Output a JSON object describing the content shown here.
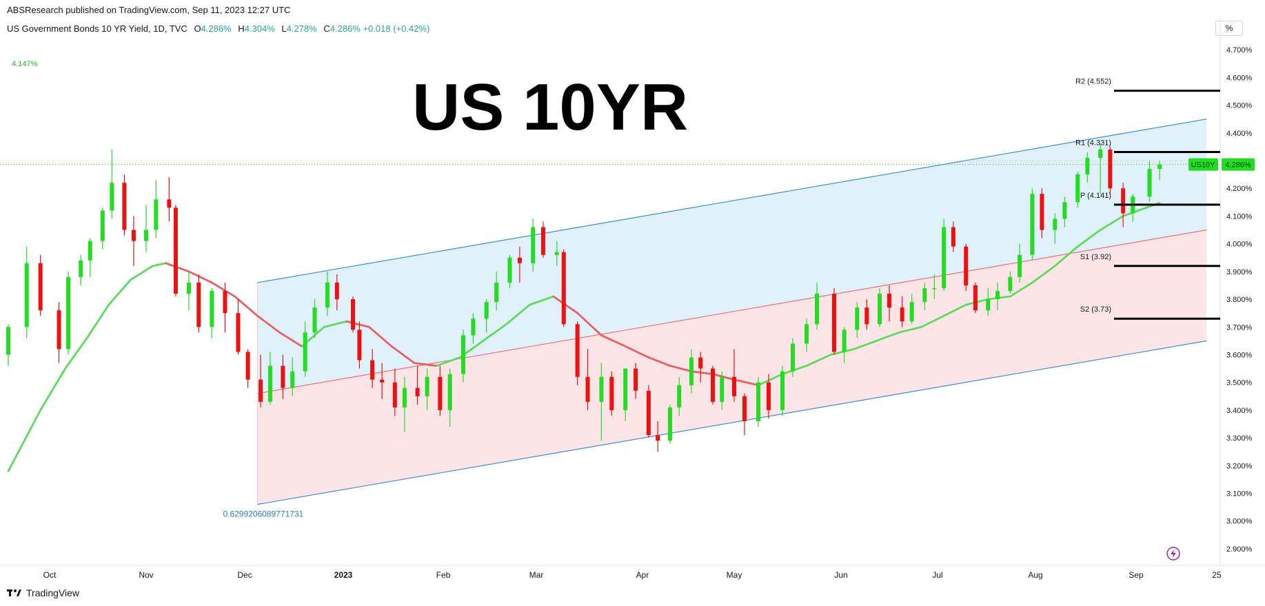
{
  "header": {
    "published": "ABSResearch published on TradingView.com, Sep 11, 2023 12:27 UTC"
  },
  "symbol": {
    "name": "US Government Bonds 10 YR Yield, 1D, TVC",
    "open_label": "O",
    "open": "4.286%",
    "high_label": "H",
    "high": "4.304%",
    "low_label": "L",
    "low": "4.278%",
    "close_label": "C",
    "close": "4.286%",
    "change": "+0.018 (+0.42%)"
  },
  "ma_value_label": "4.147%",
  "percent_button": "%",
  "footer": {
    "brand": "TradingView"
  },
  "colors": {
    "up": "#22dd22",
    "down": "#ee1111",
    "ma_up": "#5ddb5d",
    "ma_down": "#e96060",
    "channel_line": "#3a8fd6",
    "upper_fill": "#dbeefc",
    "lower_fill": "#fde1e3",
    "price_tag": "#22dd22"
  },
  "chart_data": {
    "type": "candlestick",
    "title": "US 10YR",
    "ylim": [
      2.88,
      4.76
    ],
    "y_ticks": [
      "4.700%",
      "4.600%",
      "4.500%",
      "4.400%",
      "4.300%",
      "4.200%",
      "4.100%",
      "4.000%",
      "3.900%",
      "3.800%",
      "3.700%",
      "3.600%",
      "3.500%",
      "3.400%",
      "3.300%",
      "3.200%",
      "3.100%",
      "3.000%",
      "2.900%"
    ],
    "x_labels": [
      "Oct",
      "Nov",
      "Dec",
      "2023",
      "Feb",
      "Mar",
      "Apr",
      "May",
      "Jun",
      "Jul",
      "Aug",
      "Sep",
      "25"
    ],
    "last_price": {
      "symbol": "US10Y",
      "value": "4.286%",
      "y": 4.286
    },
    "pivots": [
      {
        "label": "R2 (4.552)",
        "value": 4.552
      },
      {
        "label": "R1 (4.331)",
        "value": 4.331
      },
      {
        "label": "P (4.141)",
        "value": 4.141
      },
      {
        "label": "S1 (3.92)",
        "value": 3.92
      },
      {
        "label": "S2 (3.73)",
        "value": 3.73
      }
    ],
    "regression_channel": {
      "label": "0.6299206089771731",
      "start_date": "2022-12-05",
      "end_date": "2023-09-22",
      "upper": [
        3.86,
        4.45
      ],
      "mid": [
        3.46,
        4.05
      ],
      "lower": [
        3.06,
        3.65
      ]
    },
    "moving_average": {
      "points": [
        [
          "2022-09-22",
          3.18
        ],
        [
          "2022-09-29",
          3.4
        ],
        [
          "2022-10-06",
          3.55
        ],
        [
          "2022-10-13",
          3.66
        ],
        [
          "2022-10-20",
          3.78
        ],
        [
          "2022-10-27",
          3.87
        ],
        [
          "2022-11-03",
          3.92
        ],
        [
          "2022-11-07",
          3.93
        ],
        [
          "2022-11-14",
          3.9
        ],
        [
          "2022-11-21",
          3.86
        ],
        [
          "2022-11-28",
          3.81
        ],
        [
          "2022-12-05",
          3.74
        ],
        [
          "2022-12-12",
          3.68
        ],
        [
          "2022-12-19",
          3.63
        ],
        [
          "2022-12-26",
          3.7
        ],
        [
          "2023-01-02",
          3.72
        ],
        [
          "2023-01-09",
          3.7
        ],
        [
          "2023-01-16",
          3.63
        ],
        [
          "2023-01-23",
          3.57
        ],
        [
          "2023-01-30",
          3.56
        ],
        [
          "2023-02-06",
          3.59
        ],
        [
          "2023-02-13",
          3.65
        ],
        [
          "2023-02-20",
          3.71
        ],
        [
          "2023-02-27",
          3.78
        ],
        [
          "2023-03-06",
          3.81
        ],
        [
          "2023-03-13",
          3.75
        ],
        [
          "2023-03-20",
          3.67
        ],
        [
          "2023-03-27",
          3.63
        ],
        [
          "2023-04-03",
          3.59
        ],
        [
          "2023-04-10",
          3.56
        ],
        [
          "2023-04-17",
          3.54
        ],
        [
          "2023-04-24",
          3.53
        ],
        [
          "2023-05-01",
          3.51
        ],
        [
          "2023-05-08",
          3.49
        ],
        [
          "2023-05-15",
          3.53
        ],
        [
          "2023-05-22",
          3.56
        ],
        [
          "2023-05-29",
          3.6
        ],
        [
          "2023-06-05",
          3.62
        ],
        [
          "2023-06-12",
          3.65
        ],
        [
          "2023-06-19",
          3.68
        ],
        [
          "2023-06-26",
          3.7
        ],
        [
          "2023-07-03",
          3.74
        ],
        [
          "2023-07-10",
          3.78
        ],
        [
          "2023-07-17",
          3.8
        ],
        [
          "2023-07-24",
          3.81
        ],
        [
          "2023-07-31",
          3.86
        ],
        [
          "2023-08-07",
          3.92
        ],
        [
          "2023-08-14",
          3.99
        ],
        [
          "2023-08-21",
          4.05
        ],
        [
          "2023-08-28",
          4.1
        ],
        [
          "2023-09-04",
          4.13
        ],
        [
          "2023-09-08",
          4.147
        ]
      ]
    },
    "series": [
      {
        "name": "US10Y",
        "ohlc": [
          [
            "2022-09-22",
            3.6,
            3.71,
            3.56,
            3.7
          ],
          [
            "2022-09-26",
            3.7,
            3.99,
            3.66,
            3.93
          ],
          [
            "2022-09-29",
            3.93,
            3.96,
            3.74,
            3.76
          ],
          [
            "2022-10-04",
            3.76,
            3.79,
            3.57,
            3.62
          ],
          [
            "2022-10-07",
            3.62,
            3.9,
            3.6,
            3.88
          ],
          [
            "2022-10-11",
            3.88,
            3.96,
            3.85,
            3.94
          ],
          [
            "2022-10-14",
            3.94,
            4.02,
            3.88,
            4.01
          ],
          [
            "2022-10-18",
            4.01,
            4.13,
            3.98,
            4.12
          ],
          [
            "2022-10-21",
            4.12,
            4.34,
            4.09,
            4.22
          ],
          [
            "2022-10-25",
            4.22,
            4.25,
            4.03,
            4.05
          ],
          [
            "2022-10-28",
            4.05,
            4.1,
            3.92,
            4.01
          ],
          [
            "2022-11-01",
            4.01,
            4.14,
            3.97,
            4.05
          ],
          [
            "2022-11-04",
            4.05,
            4.23,
            4.02,
            4.16
          ],
          [
            "2022-11-08",
            4.16,
            4.24,
            4.08,
            4.13
          ],
          [
            "2022-11-10",
            4.13,
            4.14,
            3.81,
            3.82
          ],
          [
            "2022-11-14",
            3.82,
            3.9,
            3.76,
            3.86
          ],
          [
            "2022-11-17",
            3.86,
            3.89,
            3.68,
            3.7
          ],
          [
            "2022-11-21",
            3.7,
            3.84,
            3.66,
            3.83
          ],
          [
            "2022-11-25",
            3.83,
            3.86,
            3.68,
            3.75
          ],
          [
            "2022-11-29",
            3.75,
            3.8,
            3.6,
            3.61
          ],
          [
            "2022-12-02",
            3.61,
            3.62,
            3.48,
            3.51
          ],
          [
            "2022-12-06",
            3.51,
            3.6,
            3.41,
            3.43
          ],
          [
            "2022-12-09",
            3.43,
            3.61,
            3.42,
            3.56
          ],
          [
            "2022-12-13",
            3.56,
            3.6,
            3.44,
            3.48
          ],
          [
            "2022-12-16",
            3.48,
            3.59,
            3.45,
            3.54
          ],
          [
            "2022-12-20",
            3.54,
            3.72,
            3.52,
            3.68
          ],
          [
            "2022-12-23",
            3.68,
            3.8,
            3.66,
            3.77
          ],
          [
            "2022-12-27",
            3.77,
            3.9,
            3.74,
            3.86
          ],
          [
            "2022-12-30",
            3.86,
            3.89,
            3.76,
            3.8
          ],
          [
            "2023-01-04",
            3.8,
            3.81,
            3.68,
            3.69
          ],
          [
            "2023-01-06",
            3.69,
            3.72,
            3.55,
            3.58
          ],
          [
            "2023-01-10",
            3.58,
            3.62,
            3.48,
            3.51
          ],
          [
            "2023-01-13",
            3.51,
            3.57,
            3.44,
            3.5
          ],
          [
            "2023-01-17",
            3.5,
            3.55,
            3.38,
            3.41
          ],
          [
            "2023-01-20",
            3.41,
            3.52,
            3.32,
            3.48
          ],
          [
            "2023-01-24",
            3.48,
            3.56,
            3.42,
            3.45
          ],
          [
            "2023-01-27",
            3.45,
            3.55,
            3.4,
            3.52
          ],
          [
            "2023-01-31",
            3.52,
            3.56,
            3.38,
            3.4
          ],
          [
            "2023-02-03",
            3.4,
            3.55,
            3.34,
            3.53
          ],
          [
            "2023-02-07",
            3.53,
            3.69,
            3.5,
            3.67
          ],
          [
            "2023-02-10",
            3.67,
            3.75,
            3.64,
            3.73
          ],
          [
            "2023-02-14",
            3.73,
            3.8,
            3.68,
            3.79
          ],
          [
            "2023-02-17",
            3.79,
            3.9,
            3.76,
            3.86
          ],
          [
            "2023-02-21",
            3.86,
            3.96,
            3.84,
            3.95
          ],
          [
            "2023-02-24",
            3.95,
            3.99,
            3.86,
            3.93
          ],
          [
            "2023-02-28",
            3.93,
            4.09,
            3.9,
            4.06
          ],
          [
            "2023-03-03",
            4.06,
            4.08,
            3.95,
            3.96
          ],
          [
            "2023-03-07",
            3.96,
            4.01,
            3.92,
            3.97
          ],
          [
            "2023-03-09",
            3.97,
            3.98,
            3.7,
            3.71
          ],
          [
            "2023-03-13",
            3.71,
            3.72,
            3.49,
            3.52
          ],
          [
            "2023-03-16",
            3.52,
            3.62,
            3.4,
            3.43
          ],
          [
            "2023-03-20",
            3.43,
            3.57,
            3.29,
            3.52
          ],
          [
            "2023-03-23",
            3.52,
            3.54,
            3.38,
            3.4
          ],
          [
            "2023-03-27",
            3.4,
            3.55,
            3.36,
            3.55
          ],
          [
            "2023-03-30",
            3.55,
            3.57,
            3.44,
            3.47
          ],
          [
            "2023-04-03",
            3.47,
            3.49,
            3.3,
            3.31
          ],
          [
            "2023-04-06",
            3.31,
            3.36,
            3.25,
            3.29
          ],
          [
            "2023-04-10",
            3.29,
            3.42,
            3.28,
            3.41
          ],
          [
            "2023-04-13",
            3.41,
            3.52,
            3.38,
            3.49
          ],
          [
            "2023-04-17",
            3.49,
            3.62,
            3.46,
            3.59
          ],
          [
            "2023-04-20",
            3.59,
            3.61,
            3.5,
            3.55
          ],
          [
            "2023-04-24",
            3.55,
            3.56,
            3.42,
            3.43
          ],
          [
            "2023-04-27",
            3.43,
            3.54,
            3.4,
            3.52
          ],
          [
            "2023-05-01",
            3.52,
            3.62,
            3.43,
            3.45
          ],
          [
            "2023-05-04",
            3.45,
            3.46,
            3.31,
            3.36
          ],
          [
            "2023-05-08",
            3.36,
            3.52,
            3.34,
            3.5
          ],
          [
            "2023-05-11",
            3.5,
            3.53,
            3.37,
            3.4
          ],
          [
            "2023-05-15",
            3.4,
            3.56,
            3.38,
            3.54
          ],
          [
            "2023-05-18",
            3.54,
            3.66,
            3.52,
            3.64
          ],
          [
            "2023-05-22",
            3.64,
            3.73,
            3.61,
            3.71
          ],
          [
            "2023-05-25",
            3.71,
            3.86,
            3.69,
            3.82
          ],
          [
            "2023-05-30",
            3.82,
            3.84,
            3.6,
            3.61
          ],
          [
            "2023-06-02",
            3.61,
            3.7,
            3.57,
            3.69
          ],
          [
            "2023-06-06",
            3.69,
            3.79,
            3.66,
            3.77
          ],
          [
            "2023-06-09",
            3.77,
            3.8,
            3.69,
            3.71
          ],
          [
            "2023-06-13",
            3.71,
            3.84,
            3.7,
            3.82
          ],
          [
            "2023-06-16",
            3.82,
            3.85,
            3.72,
            3.77
          ],
          [
            "2023-06-20",
            3.77,
            3.81,
            3.7,
            3.72
          ],
          [
            "2023-06-23",
            3.72,
            3.82,
            3.71,
            3.79
          ],
          [
            "2023-06-27",
            3.79,
            3.86,
            3.76,
            3.84
          ],
          [
            "2023-06-30",
            3.84,
            3.89,
            3.8,
            3.84
          ],
          [
            "2023-07-03",
            3.84,
            4.09,
            3.83,
            4.06
          ],
          [
            "2023-07-06",
            4.06,
            4.08,
            3.97,
            3.99
          ],
          [
            "2023-07-10",
            3.99,
            4.0,
            3.83,
            3.85
          ],
          [
            "2023-07-13",
            3.85,
            3.86,
            3.75,
            3.76
          ],
          [
            "2023-07-17",
            3.76,
            3.84,
            3.74,
            3.8
          ],
          [
            "2023-07-20",
            3.8,
            3.86,
            3.76,
            3.83
          ],
          [
            "2023-07-24",
            3.83,
            3.9,
            3.82,
            3.88
          ],
          [
            "2023-07-27",
            3.88,
            4.0,
            3.86,
            3.96
          ],
          [
            "2023-07-31",
            3.96,
            4.2,
            3.94,
            4.18
          ],
          [
            "2023-08-03",
            4.18,
            4.2,
            4.02,
            4.05
          ],
          [
            "2023-08-07",
            4.05,
            4.11,
            4.0,
            4.09
          ],
          [
            "2023-08-10",
            4.09,
            4.17,
            4.06,
            4.15
          ],
          [
            "2023-08-14",
            4.15,
            4.26,
            4.13,
            4.25
          ],
          [
            "2023-08-17",
            4.25,
            4.33,
            4.22,
            4.31
          ],
          [
            "2023-08-21",
            4.31,
            4.36,
            4.18,
            4.34
          ],
          [
            "2023-08-24",
            4.34,
            4.35,
            4.18,
            4.2
          ],
          [
            "2023-08-28",
            4.2,
            4.22,
            4.06,
            4.11
          ],
          [
            "2023-08-31",
            4.11,
            4.18,
            4.08,
            4.17
          ],
          [
            "2023-09-05",
            4.17,
            4.3,
            4.15,
            4.27
          ],
          [
            "2023-09-08",
            4.27,
            4.3,
            4.23,
            4.286
          ]
        ]
      }
    ]
  }
}
